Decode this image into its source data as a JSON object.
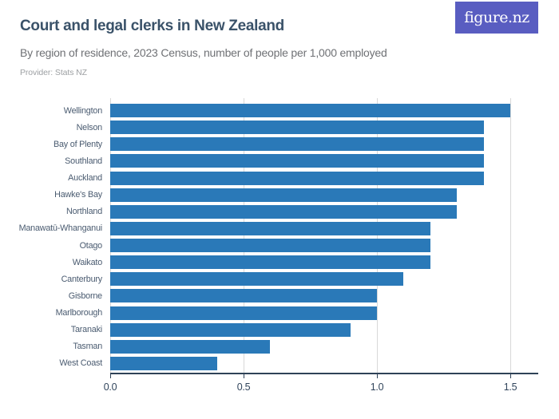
{
  "header": {
    "title": "Court and legal clerks in New Zealand",
    "subtitle": "By region of residence, 2023 Census, number of people per 1,000 employed",
    "provider": "Provider: Stats NZ",
    "logo_text": "figure.nz"
  },
  "chart_data": {
    "type": "bar",
    "orientation": "horizontal",
    "title": "Court and legal clerks in New Zealand",
    "subtitle": "By region of residence, 2023 Census, number of people per 1,000 employed",
    "categories": [
      "Wellington",
      "Nelson",
      "Bay of Plenty",
      "Southland",
      "Auckland",
      "Hawke's Bay",
      "Northland",
      "Manawatū-Whanganui",
      "Otago",
      "Waikato",
      "Canterbury",
      "Gisborne",
      "Marlborough",
      "Taranaki",
      "Tasman",
      "West Coast"
    ],
    "values": [
      1.5,
      1.4,
      1.4,
      1.4,
      1.4,
      1.3,
      1.3,
      1.2,
      1.2,
      1.2,
      1.1,
      1.0,
      1.0,
      0.9,
      0.6,
      0.4
    ],
    "xlabel": "",
    "ylabel": "",
    "xlim": [
      0,
      1.6
    ],
    "xticks": [
      0,
      0.5,
      1.0,
      1.5
    ],
    "xtick_labels": [
      "0.0",
      "0.5",
      "1.0",
      "1.5"
    ],
    "grid": true,
    "legend": false
  },
  "colors": {
    "bar": "#2a79b8",
    "title": "#3a5269",
    "subtitle": "#6f7175",
    "provider": "#9da0a3",
    "axis": "#2e4257",
    "tick_label": "#31455c",
    "category_label": "#4a5b70",
    "gridline": "#d8d8d8",
    "logo_bg": "#595dc1",
    "logo_text": "#ffffff",
    "background": "#ffffff"
  }
}
